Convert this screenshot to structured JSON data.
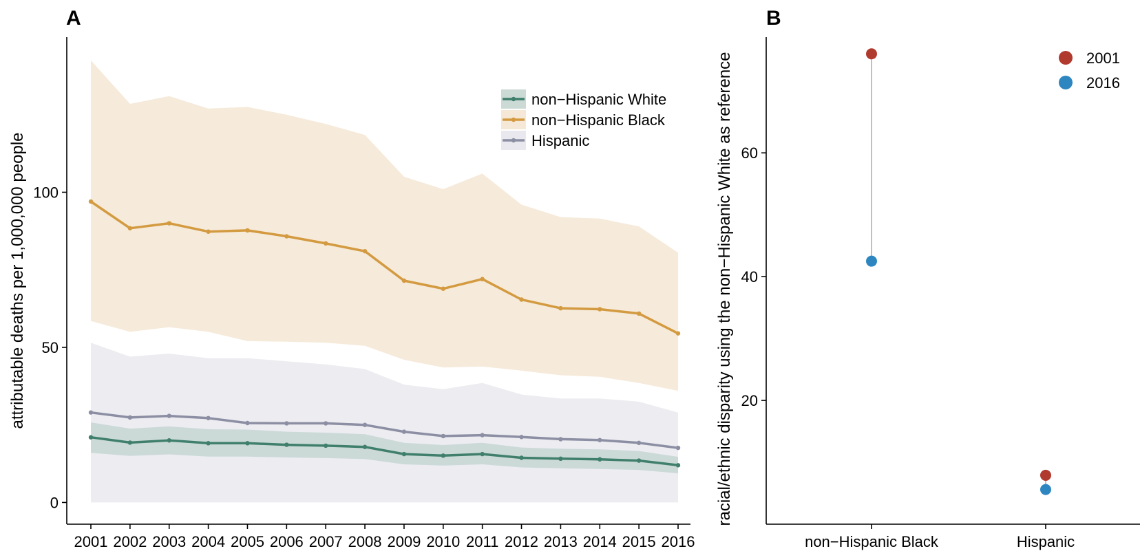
{
  "colors": {
    "white": "#3f7f6c",
    "black": "#d39a40",
    "hispanic": "#8c8fa3",
    "white_band": "#c6d6d2",
    "black_band": "#f5e6d3",
    "hispanic_band": "#e5e6ec",
    "dot2001": "#b03a2e",
    "dot2016": "#2e86c1",
    "segment": "#c0c0c0"
  },
  "chart_data": [
    {
      "type": "line",
      "panel_label": "A",
      "ylabel": "attributable deaths per 1,000,000 people",
      "x": [
        "2001",
        "2002",
        "2003",
        "2004",
        "2005",
        "2006",
        "2007",
        "2008",
        "2009",
        "2010",
        "2011",
        "2012",
        "2013",
        "2014",
        "2015",
        "2016"
      ],
      "ylim": [
        -7,
        150
      ],
      "yticks": [
        0,
        50,
        100
      ],
      "grid": false,
      "legend_position": "top-right",
      "series": [
        {
          "name": "non−Hispanic White",
          "color_key": "white",
          "values": [
            21.0,
            19.3,
            20.0,
            19.1,
            19.1,
            18.6,
            18.3,
            17.9,
            15.6,
            15.1,
            15.6,
            14.4,
            14.1,
            13.9,
            13.5,
            12.0
          ],
          "lower": [
            16.0,
            15.0,
            15.5,
            14.8,
            14.8,
            14.5,
            14.3,
            14.0,
            12.3,
            11.9,
            12.3,
            11.3,
            11.0,
            10.8,
            10.5,
            9.4
          ],
          "upper": [
            25.8,
            23.8,
            24.5,
            23.6,
            23.5,
            22.8,
            22.5,
            22.0,
            19.2,
            18.5,
            19.2,
            17.7,
            17.3,
            17.1,
            16.6,
            14.7
          ]
        },
        {
          "name": "non−Hispanic Black",
          "color_key": "black",
          "values": [
            97.0,
            88.4,
            90.0,
            87.3,
            87.7,
            85.8,
            83.5,
            81.0,
            71.5,
            68.9,
            72.0,
            65.4,
            62.6,
            62.3,
            60.9,
            54.5
          ],
          "lower": [
            58.5,
            55.0,
            56.5,
            55.0,
            52.0,
            51.8,
            51.5,
            50.5,
            46.0,
            43.5,
            43.8,
            42.5,
            41.0,
            40.5,
            38.5,
            36.0
          ],
          "upper": [
            142.5,
            128.5,
            131.0,
            127.0,
            127.5,
            125.0,
            122.0,
            118.5,
            105.0,
            101.0,
            106.0,
            96.0,
            92.0,
            91.5,
            89.0,
            80.5
          ]
        },
        {
          "name": "Hispanic",
          "color_key": "hispanic",
          "values": [
            29.0,
            27.4,
            27.9,
            27.2,
            25.6,
            25.5,
            25.5,
            25.0,
            22.8,
            21.4,
            21.7,
            21.1,
            20.4,
            20.1,
            19.2,
            17.6
          ],
          "lower": [
            0,
            0,
            0,
            0,
            0,
            0,
            0,
            0,
            0,
            0,
            0,
            0,
            0,
            0,
            0,
            0
          ],
          "upper": [
            51.5,
            47.0,
            48.0,
            46.5,
            46.5,
            45.5,
            44.5,
            43.0,
            38.0,
            36.5,
            38.5,
            34.8,
            33.5,
            33.5,
            32.5,
            29.0
          ]
        }
      ]
    },
    {
      "type": "dot",
      "panel_label": "B",
      "ylabel": "racial/ethnic disparity using the non−Hispanic White as reference",
      "categories": [
        "non−Hispanic Black",
        "Hispanic"
      ],
      "yticks": [
        20,
        40,
        60
      ],
      "ylim": [
        0,
        78.7
      ],
      "grid": false,
      "legend_position": "top-right",
      "series": [
        {
          "name": "2001",
          "color_key": "dot2001",
          "values": [
            76.0,
            7.9
          ]
        },
        {
          "name": "2016",
          "color_key": "dot2016",
          "values": [
            42.5,
            5.6
          ]
        }
      ]
    }
  ]
}
